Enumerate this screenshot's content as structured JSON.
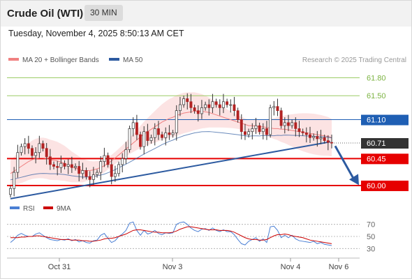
{
  "header": {
    "title": "Crude Oil (WTI)",
    "timeframe": "30 MIN"
  },
  "timestamp": "Tuesday, November 4, 2025 8:50:13 AM CET",
  "legend": {
    "ma20_label": "MA 20 + Bollinger Bands",
    "ma50_label": "MA 50",
    "credit": "Research © 2025 Trading Central"
  },
  "rsi_legend": {
    "rsi_label": "RSI",
    "ma_label": "9MA"
  },
  "colors": {
    "ma20": "#f08080",
    "bollinger_fill": "#fcdede",
    "ma50": "#2c5aa0",
    "resistance_green": "#9ccc65",
    "resistance_blue": "#1f5fb4",
    "support_red": "#e60000",
    "trendline": "#2c5aa0",
    "candle_up": "#ffffff",
    "candle_down": "#b22222",
    "rsi_line": "#4a7fd4",
    "rsi_ma": "#cc0000",
    "current_price_bg": "#333333"
  },
  "chart_data": {
    "type": "candlestick",
    "instrument": "Crude Oil (WTI)",
    "interval": "30 MIN",
    "ylim": [
      59.72,
      61.98
    ],
    "x_ticks": [
      "Oct 31",
      "Nov 3",
      "Nov 4",
      "Nov 6"
    ],
    "levels": [
      {
        "value": 61.8,
        "label": "61.80",
        "kind": "resistance"
      },
      {
        "value": 61.5,
        "label": "61.50",
        "kind": "resistance"
      },
      {
        "value": 61.1,
        "label": "61.10",
        "kind": "pivot"
      },
      {
        "value": 60.71,
        "label": "60.71",
        "kind": "current"
      },
      {
        "value": 60.45,
        "label": "60.45",
        "kind": "support"
      },
      {
        "value": 60.0,
        "label": "60.00",
        "kind": "support"
      }
    ],
    "closes": [
      59.95,
      60.22,
      60.55,
      60.65,
      60.7,
      60.62,
      60.5,
      60.55,
      60.7,
      60.62,
      60.48,
      60.35,
      60.32,
      60.3,
      60.37,
      60.32,
      60.35,
      60.3,
      60.32,
      60.2,
      60.25,
      60.15,
      60.1,
      60.18,
      60.22,
      60.4,
      60.5,
      60.35,
      60.15,
      60.2,
      60.35,
      60.45,
      60.6,
      60.95,
      61.05,
      60.85,
      60.65,
      60.9,
      60.75,
      60.8,
      60.95,
      60.85,
      60.8,
      60.88,
      60.85,
      60.88,
      61.25,
      61.35,
      61.45,
      61.4,
      61.3,
      61.25,
      61.2,
      61.3,
      61.35,
      61.3,
      61.4,
      61.35,
      61.3,
      61.4,
      61.35,
      61.35,
      61.25,
      61.1,
      60.9,
      60.85,
      60.9,
      60.95,
      61.0,
      60.9,
      60.95,
      60.85,
      61.3,
      61.32,
      61.25,
      61.0,
      61.05,
      61.0,
      61.05,
      60.95,
      60.9,
      60.88,
      60.85,
      60.8,
      60.82,
      60.78,
      60.8,
      60.75,
      60.72,
      60.71
    ],
    "ma20": [
      60.2,
      60.24,
      60.28,
      60.32,
      60.36,
      60.4,
      60.43,
      60.45,
      60.46,
      60.46,
      60.45,
      60.43,
      60.42,
      60.41,
      60.39,
      60.37,
      60.34,
      60.31,
      60.29,
      60.27,
      60.25,
      60.25,
      60.25,
      60.26,
      60.28,
      60.3,
      60.33,
      60.37,
      60.41,
      60.46,
      60.51,
      60.56,
      60.61,
      60.66,
      60.71,
      60.76,
      60.81,
      60.86,
      60.9,
      60.94,
      60.98,
      61.02,
      61.06,
      61.09,
      61.12,
      61.14,
      61.17,
      61.19,
      61.21,
      61.22,
      61.23,
      61.24,
      61.24,
      61.24,
      61.23,
      61.22,
      61.2,
      61.18,
      61.16,
      61.14,
      61.12,
      61.1,
      61.08,
      61.06,
      61.04,
      61.02,
      61.0,
      61.0,
      60.99,
      60.98,
      60.98,
      60.97,
      60.96,
      60.95,
      60.95,
      60.94,
      60.94,
      60.93,
      60.92,
      60.91,
      60.9,
      60.89,
      60.88,
      60.87,
      60.86,
      60.85,
      60.84,
      60.83,
      60.82,
      60.8
    ],
    "rsi": [
      40,
      45,
      52,
      55,
      52,
      50,
      50,
      54,
      56,
      52,
      48,
      45,
      44,
      43,
      45,
      44,
      46,
      43,
      45,
      41,
      43,
      40,
      39,
      43,
      44,
      52,
      55,
      47,
      40,
      43,
      50,
      54,
      60,
      72,
      74,
      60,
      52,
      60,
      54,
      56,
      60,
      55,
      53,
      56,
      55,
      56,
      70,
      73,
      74,
      70,
      64,
      60,
      58,
      62,
      63,
      60,
      64,
      60,
      58,
      61,
      58,
      58,
      53,
      45,
      38,
      36,
      42,
      45,
      48,
      42,
      46,
      40,
      66,
      67,
      60,
      48,
      52,
      48,
      52,
      46,
      43,
      42,
      41,
      40,
      42,
      38,
      40,
      37,
      36,
      35
    ],
    "rsi_levels": [
      70,
      50,
      30
    ],
    "rsi_ma9": [
      48,
      48,
      48,
      49,
      49,
      50,
      50,
      51,
      51,
      50,
      49,
      48,
      47,
      46,
      45,
      45,
      45,
      44,
      44,
      44,
      43,
      43,
      42,
      42,
      43,
      44,
      46,
      47,
      47,
      48,
      50,
      52,
      54,
      57,
      60,
      61,
      61,
      60,
      59,
      58,
      57,
      57,
      56,
      56,
      56,
      57,
      59,
      62,
      64,
      66,
      66,
      65,
      64,
      63,
      62,
      61,
      61,
      61,
      60,
      60,
      60,
      59,
      57,
      54,
      51,
      48,
      46,
      45,
      45,
      44,
      44,
      45,
      48,
      51,
      53,
      53,
      54,
      53,
      51,
      50,
      49,
      48,
      46,
      44,
      43,
      42,
      41,
      40,
      39,
      38
    ]
  }
}
